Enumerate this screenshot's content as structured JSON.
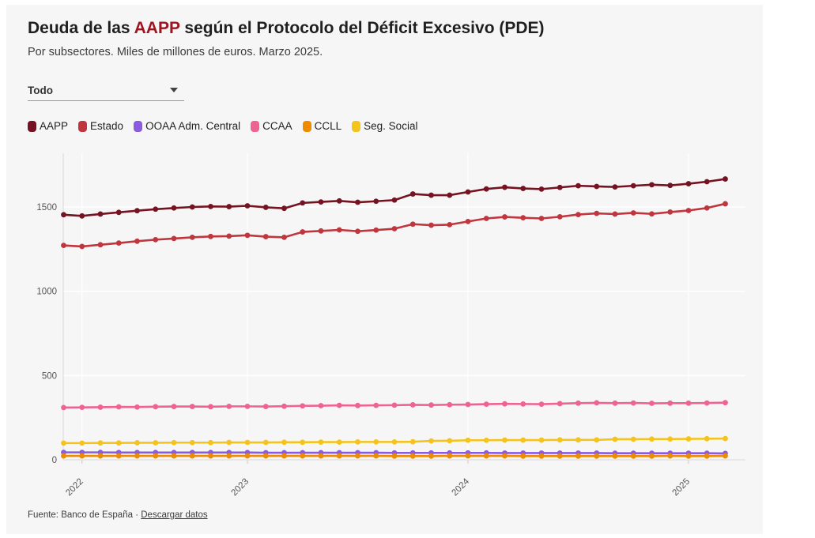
{
  "header": {
    "title_prefix": "Deuda de las ",
    "title_accent": "AAPP",
    "title_suffix": " según el Protocolo del Déficit Excesivo (PDE)",
    "subtitle": "Por subsectores. Miles de millones de euros. Marzo 2025."
  },
  "controls": {
    "filter_value": "Todo"
  },
  "footer": {
    "source": "Fuente: Banco de España",
    "separator": "·",
    "download_link": "Descargar datos"
  },
  "colors": {
    "title_accent": "#9e1421",
    "card_background": "#f6f6f6",
    "gridline": "#ffffff",
    "axis_line": "#d8d8d8",
    "axis_text": "#555555"
  },
  "chart_data": {
    "type": "line",
    "title": "Deuda de las AAPP según el Protocolo del Déficit Excesivo (PDE)",
    "subtitle": "Por subsectores. Miles de millones de euros. Marzo 2025.",
    "ylabel": "miles de millones de euros",
    "ylim": [
      0,
      1800
    ],
    "yticks": [
      0,
      500,
      1000,
      1500
    ],
    "grid": true,
    "legend_position": "top",
    "x_frequency": "monthly",
    "x": [
      "2022-03",
      "2022-04",
      "2022-05",
      "2022-06",
      "2022-07",
      "2022-08",
      "2022-09",
      "2022-10",
      "2022-11",
      "2022-12",
      "2023-01",
      "2023-02",
      "2023-03",
      "2023-04",
      "2023-05",
      "2023-06",
      "2023-07",
      "2023-08",
      "2023-09",
      "2023-10",
      "2023-11",
      "2023-12",
      "2024-01",
      "2024-02",
      "2024-03",
      "2024-04",
      "2024-05",
      "2024-06",
      "2024-07",
      "2024-08",
      "2024-09",
      "2024-10",
      "2024-11",
      "2024-12",
      "2025-01",
      "2025-02",
      "2025-03"
    ],
    "year_ticks": [
      {
        "label": "2022",
        "index": 1
      },
      {
        "label": "2023",
        "index": 10
      },
      {
        "label": "2024",
        "index": 22
      },
      {
        "label": "2025",
        "index": 34
      }
    ],
    "series": [
      {
        "name": "AAPP",
        "color": "#761322",
        "values": [
          1454,
          1447,
          1458,
          1468,
          1478,
          1487,
          1494,
          1500,
          1503,
          1502,
          1507,
          1498,
          1492,
          1524,
          1530,
          1536,
          1528,
          1534,
          1541,
          1577,
          1570,
          1570,
          1589,
          1607,
          1617,
          1610,
          1606,
          1616,
          1626,
          1622,
          1619,
          1626,
          1632,
          1628,
          1638,
          1650,
          1666
        ]
      },
      {
        "name": "Estado",
        "color": "#c0363e",
        "values": [
          1272,
          1266,
          1276,
          1286,
          1297,
          1306,
          1313,
          1320,
          1325,
          1327,
          1332,
          1324,
          1320,
          1352,
          1358,
          1364,
          1356,
          1363,
          1371,
          1398,
          1392,
          1395,
          1414,
          1432,
          1441,
          1436,
          1432,
          1442,
          1455,
          1462,
          1458,
          1465,
          1459,
          1470,
          1479,
          1494,
          1519
        ]
      },
      {
        "name": "OOAA Adm. Central",
        "color": "#8b5be0",
        "values": [
          44,
          44,
          44,
          43,
          43,
          43,
          43,
          43,
          43,
          43,
          43,
          42,
          42,
          42,
          42,
          42,
          42,
          42,
          41,
          41,
          41,
          41,
          41,
          41,
          40,
          40,
          40,
          40,
          40,
          40,
          39,
          39,
          39,
          39,
          39,
          39,
          38
        ]
      },
      {
        "name": "CCAA",
        "color": "#ee6392",
        "values": [
          310,
          311,
          312,
          314,
          313,
          315,
          316,
          316,
          315,
          317,
          317,
          316,
          318,
          320,
          321,
          323,
          322,
          323,
          324,
          326,
          325,
          327,
          328,
          330,
          332,
          331,
          330,
          333,
          336,
          338,
          336,
          337,
          335,
          336,
          336,
          337,
          339
        ]
      },
      {
        "name": "CCLL",
        "color": "#ee8c00",
        "values": [
          23,
          23,
          23,
          23,
          23,
          23,
          23,
          23,
          23,
          23,
          23,
          23,
          23,
          23,
          23,
          23,
          23,
          23,
          22,
          22,
          22,
          23,
          23,
          23,
          23,
          22,
          22,
          22,
          22,
          22,
          22,
          22,
          22,
          23,
          22,
          22,
          23
        ]
      },
      {
        "name": "Seg. Social",
        "color": "#f4c41d",
        "values": [
          99,
          99,
          100,
          100,
          101,
          101,
          102,
          102,
          102,
          103,
          103,
          103,
          104,
          104,
          105,
          105,
          106,
          106,
          106,
          107,
          112,
          113,
          116,
          116,
          117,
          117,
          117,
          118,
          118,
          118,
          122,
          122,
          123,
          123,
          124,
          125,
          126
        ]
      }
    ]
  }
}
